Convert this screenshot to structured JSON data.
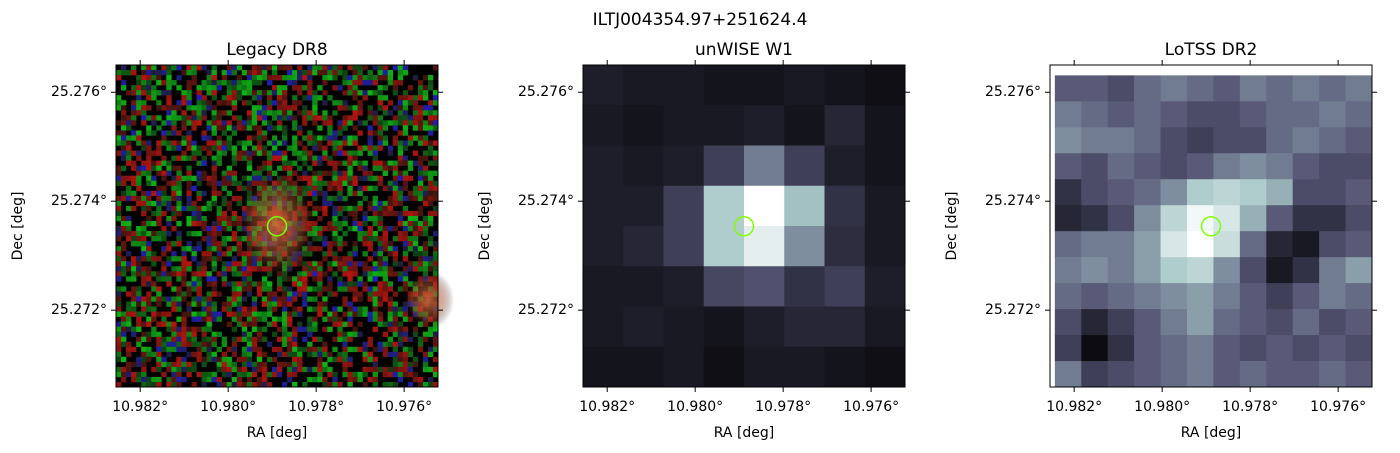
{
  "title": "ILTJ004354.97+251624.4",
  "chart_data": [
    {
      "type": "image",
      "title": "Legacy DR8",
      "xlabel": "RA [deg]",
      "ylabel": "Dec [deg]",
      "xlim": [
        10.98255,
        10.97523
      ],
      "ylim": [
        25.27059,
        25.2765
      ],
      "xticks": [
        {
          "value": 10.982,
          "label": "10.982°"
        },
        {
          "value": 10.98,
          "label": "10.980°"
        },
        {
          "value": 10.978,
          "label": "10.978°"
        },
        {
          "value": 10.976,
          "label": "10.976°"
        }
      ],
      "yticks": [
        {
          "value": 25.276,
          "label": "25.276°"
        },
        {
          "value": 25.274,
          "label": "25.274°"
        },
        {
          "value": 25.272,
          "label": "25.272°"
        }
      ],
      "marker": {
        "x": 10.97889,
        "y": 25.27354,
        "color": "#7fff00"
      }
    },
    {
      "type": "image",
      "title": "unWISE W1",
      "xlabel": "RA [deg]",
      "ylabel": "Dec [deg]",
      "xlim": [
        10.98255,
        10.97523
      ],
      "ylim": [
        25.27059,
        25.2765
      ],
      "xticks": [
        {
          "value": 10.982,
          "label": "10.982°"
        },
        {
          "value": 10.98,
          "label": "10.980°"
        },
        {
          "value": 10.978,
          "label": "10.978°"
        },
        {
          "value": 10.976,
          "label": "10.976°"
        }
      ],
      "yticks": [
        {
          "value": 25.276,
          "label": "25.276°"
        },
        {
          "value": 25.274,
          "label": "25.274°"
        },
        {
          "value": 25.272,
          "label": "25.272°"
        }
      ],
      "marker": {
        "x": 10.97889,
        "y": 25.27354,
        "color": "#7fff00"
      },
      "cmap": [
        "#000000",
        "#545474",
        "#a7c7c7",
        "#ffffff"
      ],
      "image_extent": [
        10.98255,
        10.97523,
        25.27059,
        25.2765
      ],
      "image": [
        [
          0.12,
          0.1,
          0.1,
          0.08,
          0.08,
          0.1,
          0.08,
          0.06
        ],
        [
          0.1,
          0.08,
          0.1,
          0.1,
          0.12,
          0.08,
          0.15,
          0.08
        ],
        [
          0.12,
          0.1,
          0.12,
          0.25,
          0.45,
          0.25,
          0.12,
          0.08
        ],
        [
          0.12,
          0.12,
          0.25,
          0.7,
          1.0,
          0.65,
          0.2,
          0.1
        ],
        [
          0.12,
          0.15,
          0.25,
          0.7,
          0.9,
          0.5,
          0.18,
          0.1
        ],
        [
          0.1,
          0.1,
          0.12,
          0.28,
          0.32,
          0.2,
          0.25,
          0.12
        ],
        [
          0.1,
          0.12,
          0.1,
          0.08,
          0.12,
          0.15,
          0.15,
          0.1
        ],
        [
          0.08,
          0.08,
          0.1,
          0.06,
          0.1,
          0.1,
          0.08,
          0.06
        ]
      ]
    },
    {
      "type": "image",
      "title": "LoTSS DR2",
      "xlabel": "RA [deg]",
      "ylabel": "Dec [deg]",
      "xlim": [
        10.98255,
        10.97523
      ],
      "ylim": [
        25.27059,
        25.2765
      ],
      "xticks": [
        {
          "value": 10.982,
          "label": "10.982°"
        },
        {
          "value": 10.98,
          "label": "10.980°"
        },
        {
          "value": 10.978,
          "label": "10.978°"
        },
        {
          "value": 10.976,
          "label": "10.976°"
        }
      ],
      "yticks": [
        {
          "value": 25.276,
          "label": "25.276°"
        },
        {
          "value": 25.274,
          "label": "25.274°"
        },
        {
          "value": 25.272,
          "label": "25.272°"
        }
      ],
      "marker": {
        "x": 10.97889,
        "y": 25.27354,
        "color": "#7fff00"
      },
      "cmap": [
        "#000000",
        "#545474",
        "#a7c7c7",
        "#ffffff"
      ],
      "image_extent": [
        10.98244,
        10.97523,
        25.27059,
        25.27631
      ],
      "image": [
        [
          0.35,
          0.35,
          0.3,
          0.4,
          0.45,
          0.4,
          0.35,
          0.45,
          0.4,
          0.45,
          0.4,
          0.45
        ],
        [
          0.45,
          0.4,
          0.35,
          0.4,
          0.35,
          0.3,
          0.3,
          0.35,
          0.4,
          0.4,
          0.45,
          0.4
        ],
        [
          0.5,
          0.45,
          0.45,
          0.4,
          0.3,
          0.25,
          0.3,
          0.3,
          0.4,
          0.45,
          0.4,
          0.35
        ],
        [
          0.35,
          0.3,
          0.4,
          0.35,
          0.3,
          0.35,
          0.45,
          0.5,
          0.45,
          0.35,
          0.3,
          0.3
        ],
        [
          0.2,
          0.3,
          0.35,
          0.4,
          0.5,
          0.7,
          0.75,
          0.7,
          0.6,
          0.3,
          0.3,
          0.35
        ],
        [
          0.15,
          0.2,
          0.3,
          0.5,
          0.75,
          0.95,
          0.85,
          0.6,
          0.35,
          0.2,
          0.2,
          0.3
        ],
        [
          0.4,
          0.45,
          0.45,
          0.55,
          0.85,
          1.0,
          0.8,
          0.4,
          0.15,
          0.1,
          0.3,
          0.35
        ],
        [
          0.45,
          0.5,
          0.45,
          0.55,
          0.7,
          0.75,
          0.5,
          0.3,
          0.1,
          0.2,
          0.45,
          0.55
        ],
        [
          0.4,
          0.35,
          0.4,
          0.45,
          0.5,
          0.55,
          0.45,
          0.35,
          0.25,
          0.35,
          0.45,
          0.4
        ],
        [
          0.3,
          0.15,
          0.25,
          0.35,
          0.45,
          0.55,
          0.4,
          0.35,
          0.3,
          0.4,
          0.3,
          0.35
        ],
        [
          0.25,
          0.05,
          0.2,
          0.35,
          0.4,
          0.45,
          0.35,
          0.3,
          0.35,
          0.3,
          0.35,
          0.3
        ],
        [
          0.45,
          0.25,
          0.3,
          0.35,
          0.4,
          0.45,
          0.35,
          0.4,
          0.35,
          0.35,
          0.4,
          0.35
        ]
      ]
    }
  ]
}
